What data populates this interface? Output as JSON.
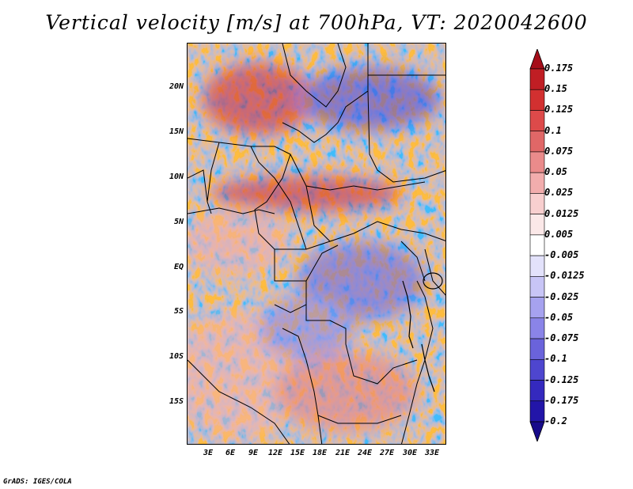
{
  "title": "Vertical velocity [m/s] at 700hPa, VT: 2020042600",
  "credit": "GrADS: IGES/COLA",
  "map": {
    "lat_labels": [
      "20N",
      "15N",
      "10N",
      "5N",
      "EQ",
      "5S",
      "10S",
      "15S"
    ],
    "lon_labels": [
      "3E",
      "6E",
      "9E",
      "12E",
      "15E",
      "18E",
      "21E",
      "24E",
      "27E",
      "30E",
      "33E"
    ]
  },
  "colorbar": {
    "labels": [
      "0.175",
      "0.15",
      "0.125",
      "0.1",
      "0.075",
      "0.05",
      "0.025",
      "0.0125",
      "0.005",
      "-0.005",
      "-0.0125",
      "-0.025",
      "-0.05",
      "-0.075",
      "-0.1",
      "-0.125",
      "-0.175",
      "-0.2"
    ],
    "colors": [
      "#a50d19",
      "#c01e24",
      "#d23030",
      "#dd4a4a",
      "#e06767",
      "#ea8b8b",
      "#f2adad",
      "#f8cfcf",
      "#fbe8e8",
      "#ffffff",
      "#e3e2fb",
      "#c8c5f6",
      "#a6a2ef",
      "#8a84e8",
      "#6a63db",
      "#4e46cf",
      "#3429be",
      "#2215a8",
      "#170b8a"
    ]
  }
}
